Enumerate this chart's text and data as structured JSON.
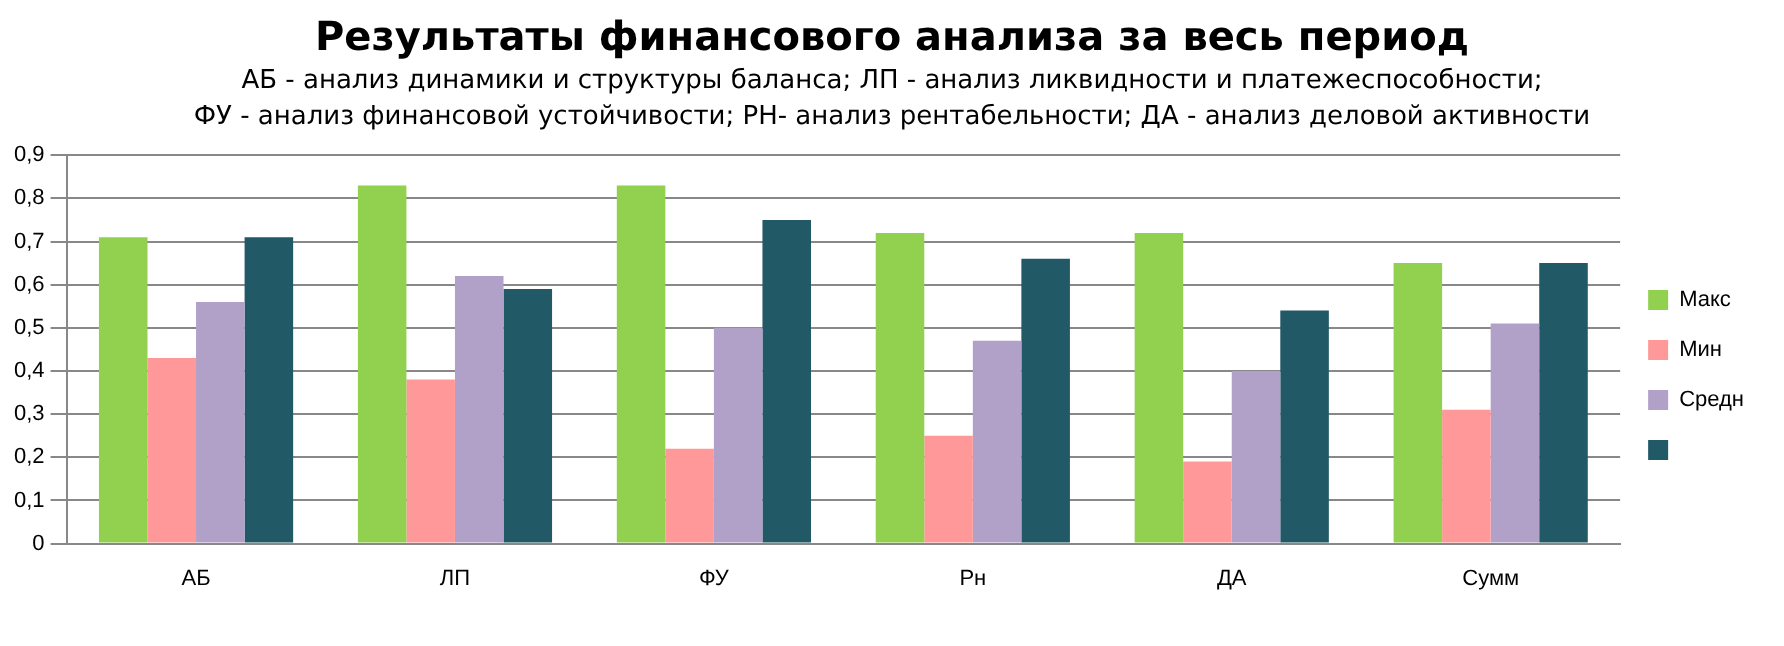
{
  "chart_data": {
    "type": "bar",
    "title": "Результаты финансового анализа за весь период",
    "subtitle": "АБ - анализ динамики и структуры баланса;  ЛП - анализ ликвидности и платежеспособности;\nФУ - анализ финансовой устойчивости; РН- анализ рентабельности; ДА - анализ деловой активности",
    "categories": [
      "АБ",
      "ЛП",
      "ФУ",
      "Рн",
      "ДА",
      "Сумм"
    ],
    "series": [
      {
        "name": "Макс",
        "color": "#92d050",
        "values": [
          0.71,
          0.83,
          0.83,
          0.72,
          0.72,
          0.65
        ]
      },
      {
        "name": "Мин",
        "color": "#ff9999",
        "values": [
          0.43,
          0.38,
          0.22,
          0.25,
          0.19,
          0.31
        ]
      },
      {
        "name": "Средн",
        "color": "#b1a0c7",
        "values": [
          0.56,
          0.62,
          0.5,
          0.47,
          0.4,
          0.51
        ]
      },
      {
        "color": "#215967",
        "values": [
          0.71,
          0.59,
          0.75,
          0.66,
          0.54,
          0.65
        ]
      }
    ],
    "ylim": [
      0,
      0.9
    ],
    "yticks": [
      0,
      {
        "value": 0.1,
        "label": "0,1"
      },
      {
        "value": 0.2,
        "label": "0,2"
      },
      {
        "value": 0.3,
        "label": "0,3"
      },
      {
        "value": 0.4,
        "label": "0,4"
      },
      {
        "value": 0.5,
        "label": "0,5"
      },
      {
        "value": 0.6,
        "label": "0,6"
      },
      {
        "value": 0.7,
        "label": "0,7"
      },
      {
        "value": 0.8,
        "label": "0,8"
      },
      {
        "value": 0.9,
        "label": "0,9"
      }
    ],
    "grid": "y",
    "legend": "right"
  }
}
